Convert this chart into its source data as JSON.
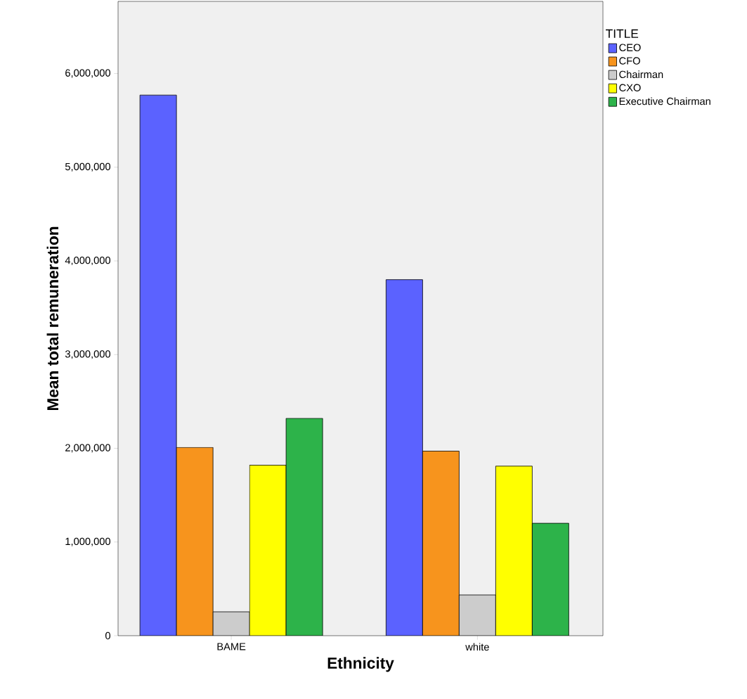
{
  "chart_data": {
    "type": "bar",
    "xlabel": "Ethnicity",
    "ylabel": "Mean total remuneration",
    "legend_title": "TITLE",
    "legend": "top right",
    "grid": false,
    "categories": [
      "BAME",
      "white"
    ],
    "series": [
      {
        "name": "CEO",
        "color": "#5b62ff",
        "values": [
          5770000,
          3800000
        ]
      },
      {
        "name": "CFO",
        "color": "#f7941d",
        "values": [
          2010000,
          1970000
        ]
      },
      {
        "name": "Chairman",
        "color": "#cccccc",
        "values": [
          255000,
          435000
        ]
      },
      {
        "name": "CXO",
        "color": "#ffff00",
        "values": [
          1820000,
          1810000
        ]
      },
      {
        "name": "Executive Chairman",
        "color": "#2db34a",
        "values": [
          2320000,
          1200000
        ]
      }
    ],
    "ylim": [
      0,
      6770000
    ],
    "yticks": [
      {
        "value": 0,
        "label": "0"
      },
      {
        "value": 1000000,
        "label": "1,000,000"
      },
      {
        "value": 2000000,
        "label": "2,000,000"
      },
      {
        "value": 3000000,
        "label": "3,000,000"
      },
      {
        "value": 4000000,
        "label": "4,000,000"
      },
      {
        "value": 5000000,
        "label": "5,000,000"
      },
      {
        "value": 6000000,
        "label": "6,000,000"
      }
    ]
  }
}
